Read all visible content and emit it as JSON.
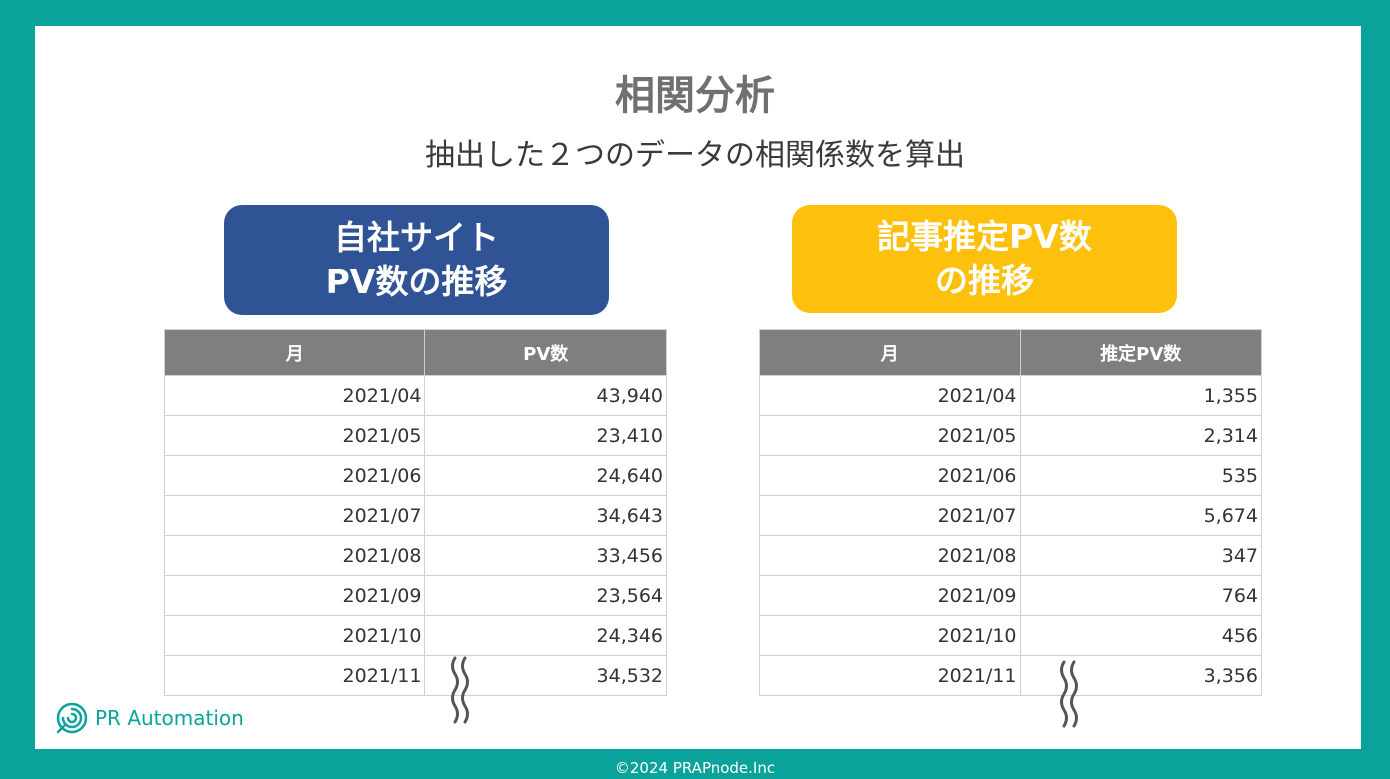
{
  "title": "相関分析",
  "subtitle": "抽出した２つのデータの相関係数を算出",
  "left_badge": {
    "line1": "自社サイト",
    "line2": "PV数の推移"
  },
  "right_badge": {
    "line1": "記事推定PV数",
    "line2": "の推移"
  },
  "left_table": {
    "headers": [
      "月",
      "PV数"
    ],
    "rows": [
      [
        "2021/04",
        "43,940"
      ],
      [
        "2021/05",
        "23,410"
      ],
      [
        "2021/06",
        "24,640"
      ],
      [
        "2021/07",
        "34,643"
      ],
      [
        "2021/08",
        "33,456"
      ],
      [
        "2021/09",
        "23,564"
      ],
      [
        "2021/10",
        "24,346"
      ],
      [
        "2021/11",
        "34,532"
      ]
    ]
  },
  "right_table": {
    "headers": [
      "月",
      "推定PV数"
    ],
    "rows": [
      [
        "2021/04",
        "1,355"
      ],
      [
        "2021/05",
        "2,314"
      ],
      [
        "2021/06",
        "535"
      ],
      [
        "2021/07",
        "5,674"
      ],
      [
        "2021/08",
        "347"
      ],
      [
        "2021/09",
        "764"
      ],
      [
        "2021/10",
        "456"
      ],
      [
        "2021/11",
        "3,356"
      ]
    ]
  },
  "logo": {
    "text": "PR Automation",
    "color": "#0aa39c"
  },
  "footer": "©2024 PRAPnode.Inc",
  "colors": {
    "background": "#0aa39c",
    "left_badge": "#305395",
    "right_badge": "#fdc00c",
    "table_header": "#7f7f7f"
  }
}
